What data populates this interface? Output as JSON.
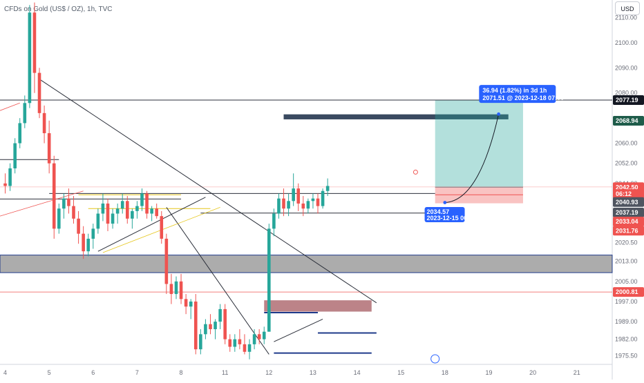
{
  "header": {
    "title": "CFDs on Gold (US$ / OZ), 1h, TVC",
    "currency": "USD"
  },
  "colors": {
    "up": "#26a69a",
    "down": "#ef5350",
    "level": "#2a2e39",
    "zoneBlue": "#3a4a60",
    "target": "#2962ff"
  },
  "chart_data": {
    "type": "candlestick",
    "title": "CFDs on Gold (US$ / OZ), 1h, TVC",
    "ylim": [
      1972,
      2117
    ],
    "y_ticks": [
      2110.0,
      2100.0,
      2090.0,
      2080.0,
      2069.0,
      2060.0,
      2052.0,
      2044.0,
      2036.0,
      2028.0,
      2020.5,
      2013.0,
      2005.0,
      1997.0,
      1989.0,
      1982.0,
      1975.5
    ],
    "y_tick_labels": [
      "2110.00",
      "2100.00",
      "2090.00",
      "2080.00",
      "2069.00",
      "2060.00",
      "2052.00",
      "2044.00",
      "2036.00",
      "2028.00",
      "2020.50",
      "2013.00",
      "2005.00",
      "1997.00",
      "1989.00",
      "1982.00",
      "1975.50"
    ],
    "x_ticks": [
      {
        "label": "4",
        "slot": 0
      },
      {
        "label": "5",
        "slot": 9
      },
      {
        "label": "6",
        "slot": 18
      },
      {
        "label": "7",
        "slot": 27
      },
      {
        "label": "8",
        "slot": 36
      },
      {
        "label": "11",
        "slot": 45
      },
      {
        "label": "12",
        "slot": 54
      },
      {
        "label": "13",
        "slot": 63
      },
      {
        "label": "14",
        "slot": 72
      },
      {
        "label": "15",
        "slot": 81
      },
      {
        "label": "18",
        "slot": 90
      },
      {
        "label": "19",
        "slot": 99
      },
      {
        "label": "20",
        "slot": 108
      },
      {
        "label": "21",
        "slot": 117
      }
    ],
    "candles": [
      [
        2044,
        2048,
        2040,
        2043
      ],
      [
        2043,
        2052,
        2041,
        2050
      ],
      [
        2050,
        2062,
        2048,
        2060
      ],
      [
        2060,
        2070,
        2058,
        2068
      ],
      [
        2068,
        2079,
        2066,
        2076
      ],
      [
        2076,
        2115,
        2074,
        2112
      ],
      [
        2112,
        2116,
        2080,
        2088
      ],
      [
        2088,
        2090,
        2070,
        2072
      ],
      [
        2072,
        2075,
        2060,
        2064
      ],
      [
        2064,
        2069,
        2048,
        2052
      ],
      [
        2052,
        2055,
        2022,
        2026
      ],
      [
        2026,
        2036,
        2024,
        2034
      ],
      [
        2034,
        2040,
        2030,
        2038
      ],
      [
        2038,
        2042,
        2032,
        2035
      ],
      [
        2035,
        2039,
        2028,
        2030
      ],
      [
        2030,
        2033,
        2020,
        2024
      ],
      [
        2024,
        2027,
        2014,
        2017
      ],
      [
        2017,
        2024,
        2015,
        2022
      ],
      [
        2022,
        2028,
        2018,
        2026
      ],
      [
        2026,
        2034,
        2024,
        2032
      ],
      [
        2032,
        2040,
        2029,
        2036
      ],
      [
        2036,
        2038,
        2025,
        2028
      ],
      [
        2028,
        2034,
        2026,
        2032
      ],
      [
        2032,
        2036,
        2028,
        2034
      ],
      [
        2034,
        2040,
        2032,
        2037
      ],
      [
        2037,
        2039,
        2028,
        2030
      ],
      [
        2030,
        2034,
        2026,
        2033
      ],
      [
        2033,
        2037,
        2030,
        2035
      ],
      [
        2035,
        2042,
        2033,
        2040
      ],
      [
        2040,
        2041,
        2030,
        2032
      ],
      [
        2032,
        2035,
        2029,
        2034
      ],
      [
        2034,
        2036,
        2030,
        2031
      ],
      [
        2031,
        2033,
        2020,
        2022
      ],
      [
        2022,
        2024,
        2000,
        2004
      ],
      [
        2004,
        2008,
        1996,
        2000
      ],
      [
        2000,
        2007,
        1998,
        2005
      ],
      [
        2005,
        2008,
        1996,
        1998
      ],
      [
        1998,
        2000,
        1992,
        1995
      ],
      [
        1995,
        1998,
        1990,
        1997
      ],
      [
        1997,
        2000,
        1976,
        1978
      ],
      [
        1978,
        1986,
        1976,
        1984
      ],
      [
        1984,
        1990,
        1982,
        1988
      ],
      [
        1988,
        1992,
        1984,
        1986
      ],
      [
        1986,
        1990,
        1982,
        1989
      ],
      [
        1989,
        1996,
        1986,
        1994
      ],
      [
        1994,
        1996,
        1980,
        1982
      ],
      [
        1982,
        1984,
        1977,
        1979
      ],
      [
        1979,
        1984,
        1977,
        1982
      ],
      [
        1982,
        1986,
        1978,
        1980
      ],
      [
        1980,
        1984,
        1976,
        1977
      ],
      [
        1977,
        1982,
        1974,
        1980
      ],
      [
        1980,
        1986,
        1978,
        1984
      ],
      [
        1984,
        1986,
        1980,
        1982
      ],
      [
        1982,
        1987,
        1980,
        1985
      ],
      [
        1985,
        2028,
        1985,
        2026
      ],
      [
        2026,
        2034,
        2023,
        2032
      ],
      [
        2032,
        2040,
        2030,
        2038
      ],
      [
        2038,
        2042,
        2031,
        2034
      ],
      [
        2034,
        2040,
        2031,
        2037
      ],
      [
        2037,
        2048,
        2035,
        2042
      ],
      [
        2042,
        2044,
        2033,
        2036
      ],
      [
        2036,
        2039,
        2031,
        2034
      ],
      [
        2034,
        2038,
        2032,
        2037
      ],
      [
        2037,
        2040,
        2034,
        2038
      ],
      [
        2038,
        2040,
        2032,
        2035
      ],
      [
        2035,
        2042,
        2034,
        2041
      ],
      [
        2041,
        2046,
        2039,
        2043
      ]
    ],
    "levels": [
      {
        "name": "resistance-2077",
        "price": 2077.19
      },
      {
        "name": "ref-2044",
        "price": 2044.5
      },
      {
        "name": "ref-2040",
        "price": 2040.0
      },
      {
        "name": "ref-2036",
        "price": 2036.1
      },
      {
        "name": "red-2000",
        "price": 2000.81
      }
    ],
    "price_labels": [
      {
        "text": "2077.19",
        "price": 2077.19,
        "color": "#131722"
      },
      {
        "text": "2068.94",
        "price": 2068.94,
        "color": "#1e5c4a"
      },
      {
        "text": "2042.50",
        "price": 2042.5,
        "color": "#ef5350"
      },
      {
        "text": "06:12",
        "price": 2039.8,
        "color": "#ef5350"
      },
      {
        "text": "2040.93",
        "price": 2036.6,
        "color": "#4f5560"
      },
      {
        "text": "2037.19",
        "price": 2032.4,
        "color": "#4f5560"
      },
      {
        "text": "2033.04",
        "price": 2028.8,
        "color": "#ef5350"
      },
      {
        "text": "2031.76",
        "price": 2025.2,
        "color": "#ef5350"
      },
      {
        "text": "2000.81",
        "price": 2000.81,
        "color": "#ef5350"
      }
    ],
    "position": {
      "entry": 2042.5,
      "target": 2077.19,
      "stop": 2036.1,
      "target_text_1": "36.94 (1.82%) in 3d 1h",
      "target_text_2": "2071.51 @ 2023-12-18  07:00",
      "low_text_1": "2034.57",
      "low_text_2": "2023-12-15 06:00"
    }
  }
}
